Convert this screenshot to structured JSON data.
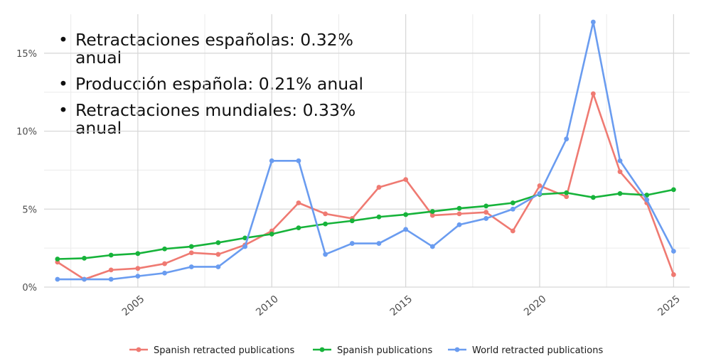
{
  "bullets": [
    "Retractaciones españolas: 0.32% anual",
    "Producción española: 0.21% anual",
    "Retractaciones mundiales: 0.33% anual"
  ],
  "chart_data": {
    "type": "line",
    "x": [
      2002,
      2003,
      2004,
      2005,
      2006,
      2007,
      2008,
      2009,
      2010,
      2011,
      2012,
      2013,
      2014,
      2015,
      2016,
      2017,
      2018,
      2019,
      2020,
      2021,
      2022,
      2023,
      2024,
      2025
    ],
    "xticks": [
      "2005",
      "2010",
      "2015",
      "2020",
      "2025"
    ],
    "yticks": [
      "0%",
      "5%",
      "10%",
      "15%"
    ],
    "ylim": [
      0,
      17.5
    ],
    "xlim": [
      2001.5,
      2025.6
    ],
    "grid": true,
    "legend_position": "bottom",
    "series": [
      {
        "name": "Spanish retracted publications",
        "color": "#ef7a72",
        "values": [
          1.6,
          0.5,
          1.1,
          1.2,
          1.5,
          2.2,
          2.1,
          2.7,
          3.6,
          5.4,
          4.7,
          4.4,
          6.4,
          6.9,
          4.6,
          4.7,
          4.8,
          3.6,
          6.5,
          5.8,
          12.4,
          7.4,
          5.4,
          0.8
        ]
      },
      {
        "name": "Spanish publications",
        "color": "#16b33a",
        "values": [
          1.8,
          1.85,
          2.05,
          2.15,
          2.45,
          2.6,
          2.85,
          3.15,
          3.4,
          3.8,
          4.05,
          4.25,
          4.5,
          4.65,
          4.85,
          5.05,
          5.2,
          5.4,
          5.95,
          6.05,
          5.75,
          6.0,
          5.9,
          6.25
        ]
      },
      {
        "name": "World retracted publications",
        "color": "#6a9cf0",
        "values": [
          0.5,
          0.5,
          0.5,
          0.7,
          0.9,
          1.3,
          1.3,
          2.6,
          8.1,
          8.1,
          2.1,
          2.8,
          2.8,
          3.7,
          2.6,
          4.0,
          4.4,
          5.0,
          6.0,
          9.5,
          17.0,
          8.1,
          5.6,
          2.3
        ]
      }
    ]
  }
}
